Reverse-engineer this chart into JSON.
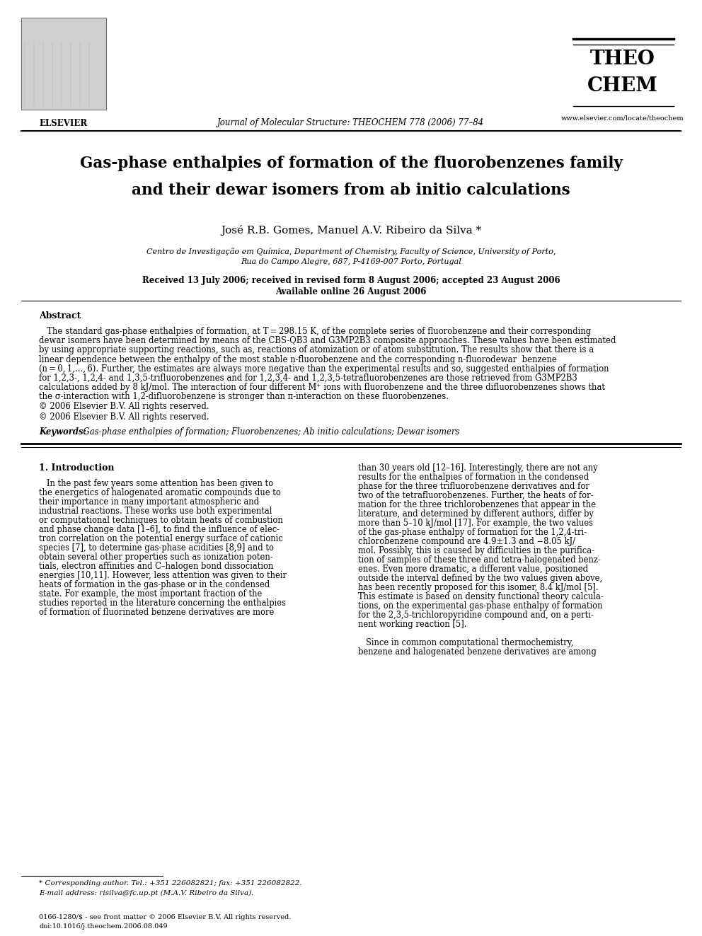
{
  "background_color": "#ffffff",
  "journal_name": "Journal of Molecular Structure: THEOCHEM 778 (2006) 77–84",
  "journal_url": "www.elsevier.com/locate/theochem",
  "title_line1": "Gas-phase enthalpies of formation of the fluorobenzenes family",
  "title_line2": "and their dewar isomers from ab initio calculations",
  "authors": "José R.B. Gomes, Manuel A.V. Ribeiro da Silva *",
  "affiliation1": "Centro de Investigação em Química, Department of Chemistry, Faculty of Science, University of Porto,",
  "affiliation2": "Rua do Campo Alegre, 687, P-4169-007 Porto, Portugal",
  "received": "Received 13 July 2006; received in revised form 8 August 2006; accepted 23 August 2006",
  "available": "Available online 26 August 2006",
  "abstract_title": "Abstract",
  "abstract_indent": "   The standard gas-phase enthalpies of formation, at T = 298.15 K, of the complete series of fluorobenzene and their corresponding",
  "abstract_lines": [
    "dewar isomers have been determined by means of the CBS-QB3 and G3MP2B3 composite approaches. These values have been estimated",
    "by using appropriate supporting reactions, such as, reactions of atomization or of atom substitution. The results show that there is a",
    "linear dependence between the enthalpy of the most stable n-fluorobenzene and the corresponding n-fluorodewar  benzene",
    "(n = 0, 1,..., 6). Further, the estimates are always more negative than the experimental results and so, suggested enthalpies of formation",
    "for 1,2,3-, 1,2,4- and 1,3,5-trifluorobenzenes and for 1,2,3,4- and 1,2,3,5-tetrafluorobenzenes are those retrieved from G3MP2B3",
    "calculations added by 8 kJ/mol. The interaction of four different M⁺ ions with fluorobenzene and the three difluorobenzenes shows that",
    "the σ-interaction with 1,2-difluorobenzene is stronger than π-interaction on these fluorobenzenes.",
    "© 2006 Elsevier B.V. All rights reserved."
  ],
  "keywords_label": "Keywords:",
  "keywords_text": "  Gas-phase enthalpies of formation; Fluorobenzenes; Ab initio calculations; Dewar isomers",
  "section1_title": "1. Introduction",
  "col1_lines": [
    "   In the past few years some attention has been given to",
    "the energetics of halogenated aromatic compounds due to",
    "their importance in many important atmospheric and",
    "industrial reactions. These works use both experimental",
    "or computational techniques to obtain heats of combustion",
    "and phase change data [1–6], to find the influence of elec-",
    "tron correlation on the potential energy surface of cationic",
    "species [7], to determine gas-phase acidities [8,9] and to",
    "obtain several other properties such as ionization poten-",
    "tials, electron affinities and C–halogen bond dissociation",
    "energies [10,11]. However, less attention was given to their",
    "heats of formation in the gas-phase or in the condensed",
    "state. For example, the most important fraction of the",
    "studies reported in the literature concerning the enthalpies",
    "of formation of fluorinated benzene derivatives are more"
  ],
  "col2_lines": [
    "than 30 years old [12–16]. Interestingly, there are not any",
    "results for the enthalpies of formation in the condensed",
    "phase for the three trifluorobenzene derivatives and for",
    "two of the tetrafluorobenzenes. Further, the heats of for-",
    "mation for the three trichlorobenzenes that appear in the",
    "literature, and determined by different authors, differ by",
    "more than 5–10 kJ/mol [17]. For example, the two values",
    "of the gas-phase enthalpy of formation for the 1,2,4-tri-",
    "chlorobenzene compound are 4.9±1.3 and −8.05 kJ/",
    "mol. Possibly, this is caused by difficulties in the purifica-",
    "tion of samples of these three and tetra-halogenated benz-",
    "enes. Even more dramatic, a different value, positioned",
    "outside the interval defined by the two values given above,",
    "has been recently proposed for this isomer, 8.4 kJ/mol [5].",
    "This estimate is based on density functional theory calcula-",
    "tions, on the experimental gas-phase enthalpy of formation",
    "for the 2,3,5-trichloropyridine compound and, on a perti-",
    "nent working reaction [5].",
    "   Since in common computational thermochemistry,",
    "benzene and halogenated benzene derivatives are among"
  ],
  "footnote1": "* Corresponding author. Tel.: +351 226082821; fax: +351 226082822.",
  "footnote2": "E-mail address: risilva@fc.up.pt (M.A.V. Ribeiro da Silva).",
  "footer1": "0166-1280/$ - see front matter © 2006 Elsevier B.V. All rights reserved.",
  "footer2": "doi:10.1016/j.theochem.2006.08.049"
}
